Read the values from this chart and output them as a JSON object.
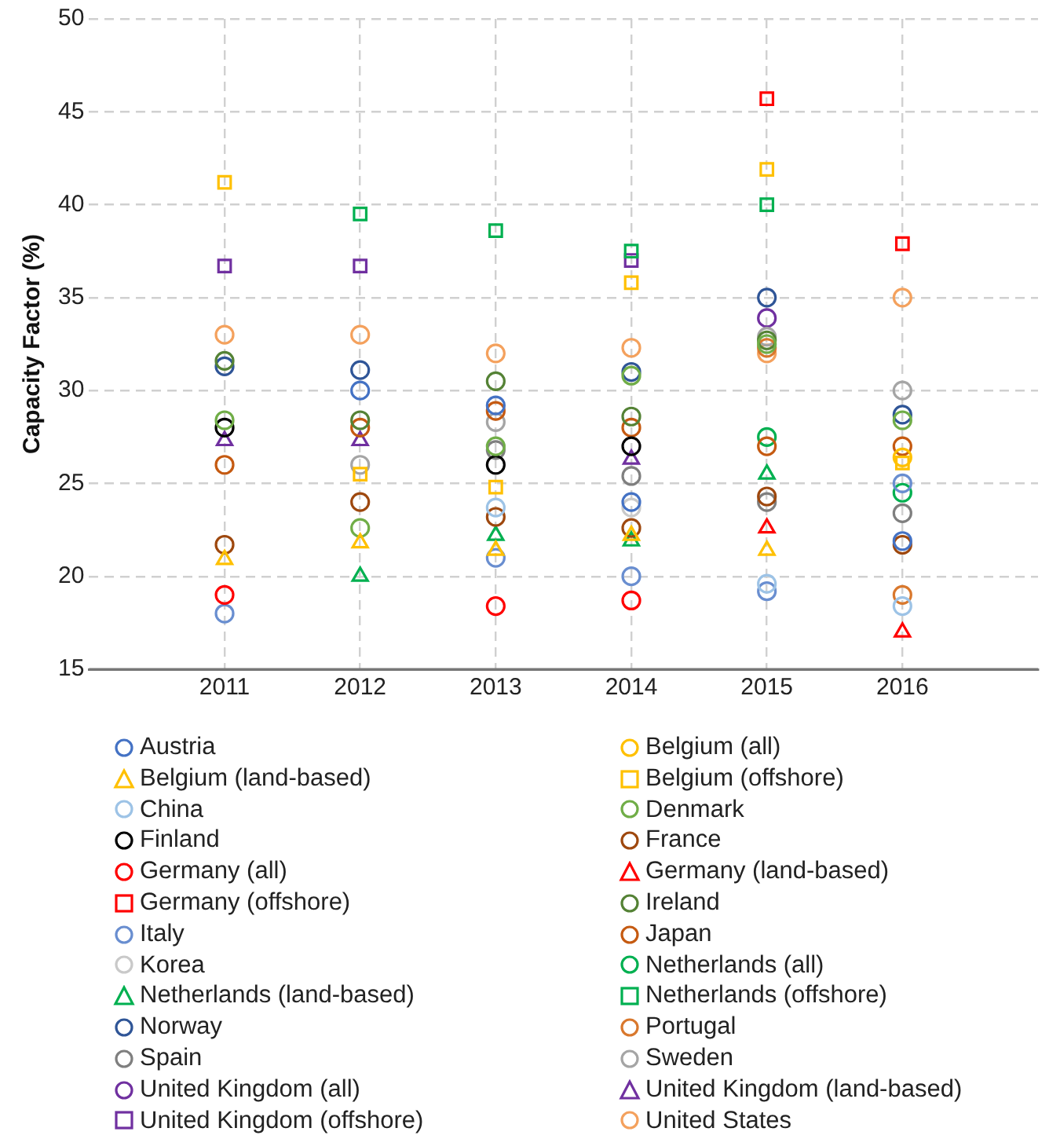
{
  "chart_data": {
    "type": "scatter",
    "ylabel": "Capacity Factor (%)",
    "x": [
      2011,
      2012,
      2013,
      2014,
      2015,
      2016
    ],
    "xlim": [
      2010,
      2017
    ],
    "xticks": [
      2011,
      2012,
      2013,
      2014,
      2015,
      2016
    ],
    "ylim": [
      15,
      50
    ],
    "yticks": [
      15,
      20,
      25,
      30,
      35,
      40,
      45,
      50
    ],
    "grid": true,
    "legend": "bottom",
    "series": [
      {
        "name": "Austria",
        "color": "#4472c4",
        "marker": "circle",
        "values": [
          null,
          30.0,
          29.2,
          24.0,
          null,
          21.9
        ]
      },
      {
        "name": "Belgium (all)",
        "color": "#ffc000",
        "marker": "circle",
        "values": [
          null,
          null,
          null,
          null,
          null,
          26.4
        ]
      },
      {
        "name": "Belgium (land-based)",
        "color": "#ffc000",
        "marker": "triangle",
        "values": [
          20.9,
          21.8,
          21.4,
          22.2,
          21.4,
          null
        ]
      },
      {
        "name": "Belgium (offshore)",
        "color": "#ffc000",
        "marker": "square",
        "values": [
          41.2,
          25.5,
          24.8,
          35.8,
          41.9,
          26.1
        ]
      },
      {
        "name": "China",
        "color": "#9dc3e6",
        "marker": "circle",
        "values": [
          null,
          null,
          23.7,
          null,
          19.6,
          18.4
        ]
      },
      {
        "name": "Denmark",
        "color": "#70ad47",
        "marker": "circle",
        "values": [
          28.4,
          22.6,
          27.0,
          30.8,
          32.5,
          28.4
        ]
      },
      {
        "name": "Finland",
        "color": "#000000",
        "marker": "circle",
        "values": [
          28.0,
          null,
          26.0,
          27.0,
          null,
          null
        ]
      },
      {
        "name": "France",
        "color": "#9e480e",
        "marker": "circle",
        "values": [
          21.7,
          24.0,
          23.2,
          22.6,
          24.3,
          21.7
        ]
      },
      {
        "name": "Germany (all)",
        "color": "#ff0000",
        "marker": "circle",
        "values": [
          19.0,
          null,
          18.4,
          18.7,
          null,
          null
        ]
      },
      {
        "name": "Germany (land-based)",
        "color": "#ff0000",
        "marker": "triangle",
        "values": [
          null,
          null,
          null,
          null,
          22.6,
          17.0
        ]
      },
      {
        "name": "Germany (offshore)",
        "color": "#ff0000",
        "marker": "square",
        "values": [
          null,
          null,
          null,
          null,
          45.7,
          37.9
        ]
      },
      {
        "name": "Ireland",
        "color": "#548235",
        "marker": "circle",
        "values": [
          31.6,
          28.4,
          30.5,
          28.6,
          32.7,
          null
        ]
      },
      {
        "name": "Italy",
        "color": "#698ed0",
        "marker": "circle",
        "values": [
          18.0,
          null,
          21.0,
          20.0,
          19.2,
          25.0
        ]
      },
      {
        "name": "Japan",
        "color": "#c55a11",
        "marker": "circle",
        "values": [
          26.0,
          28.0,
          28.9,
          28.0,
          27.0,
          27.0
        ]
      },
      {
        "name": "Korea",
        "color": "#c9c9c9",
        "marker": "circle",
        "values": [
          null,
          null,
          null,
          23.7,
          null,
          null
        ]
      },
      {
        "name": "Netherlands (all)",
        "color": "#00b050",
        "marker": "circle",
        "values": [
          null,
          null,
          null,
          null,
          27.5,
          24.5
        ]
      },
      {
        "name": "Netherlands (land-based)",
        "color": "#00b050",
        "marker": "triangle",
        "values": [
          null,
          20.0,
          22.2,
          21.9,
          25.5,
          null
        ]
      },
      {
        "name": "Netherlands (offshore)",
        "color": "#00b050",
        "marker": "square",
        "values": [
          null,
          39.5,
          38.6,
          37.5,
          40.0,
          null
        ]
      },
      {
        "name": "Norway",
        "color": "#2f5597",
        "marker": "circle",
        "values": [
          31.3,
          31.1,
          null,
          31.0,
          35.0,
          28.7
        ]
      },
      {
        "name": "Portugal",
        "color": "#d9782d",
        "marker": "circle",
        "values": [
          null,
          null,
          null,
          null,
          32.3,
          19.0
        ]
      },
      {
        "name": "Spain",
        "color": "#7f7f7f",
        "marker": "circle",
        "values": [
          null,
          null,
          26.8,
          25.4,
          24.0,
          23.4
        ]
      },
      {
        "name": "Sweden",
        "color": "#a5a5a5",
        "marker": "circle",
        "values": [
          null,
          26.0,
          28.3,
          null,
          32.9,
          30.0
        ]
      },
      {
        "name": "United Kingdom (all)",
        "color": "#7030a0",
        "marker": "circle",
        "values": [
          null,
          null,
          null,
          null,
          33.9,
          null
        ]
      },
      {
        "name": "United Kingdom (land-based)",
        "color": "#7030a0",
        "marker": "triangle",
        "values": [
          27.3,
          27.3,
          null,
          26.3,
          null,
          null
        ]
      },
      {
        "name": "United Kingdom (offshore)",
        "color": "#7030a0",
        "marker": "square",
        "values": [
          36.7,
          36.7,
          null,
          37.0,
          null,
          null
        ]
      },
      {
        "name": "United States",
        "color": "#f4a15d",
        "marker": "circle",
        "values": [
          33.0,
          33.0,
          32.0,
          32.3,
          32.0,
          35.0
        ]
      }
    ]
  }
}
